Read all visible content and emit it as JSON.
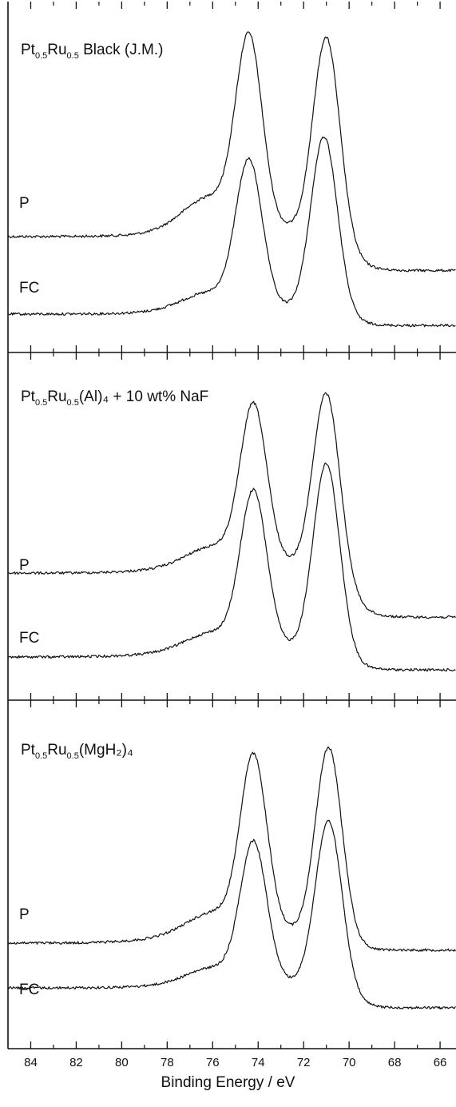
{
  "chart_data": {
    "type": "line",
    "xlabel": "Binding Energy / eV",
    "xlim": [
      85,
      65.3
    ],
    "x_reversed": true,
    "x_ticks": [
      84,
      82,
      80,
      78,
      76,
      74,
      72,
      70,
      68,
      66
    ],
    "peaks_eV": [
      74.3,
      71.0
    ],
    "panels": [
      {
        "title": {
          "pre": "Pt",
          "s1": "0.5",
          "mid": "Ru",
          "s2": "0.5",
          "post": " Black (J.M.)"
        },
        "series": [
          {
            "name": "P",
            "baseline_left": 296,
            "baseline_right": 346,
            "peak1_x": 74.4,
            "peak1_top": 57,
            "peak2_x": 71.0,
            "peak2_top": 47,
            "valley_y": 233,
            "shoulder": 0.55
          },
          {
            "name": "FC",
            "baseline_left": 393,
            "baseline_right": 413,
            "peak1_x": 74.4,
            "peak1_top": 207,
            "peak2_x": 71.1,
            "peak2_top": 171,
            "valley_y": 345,
            "shoulder": 0.25
          }
        ]
      },
      {
        "title": {
          "pre": "Pt",
          "s1": "0.5",
          "mid": "Ru",
          "s2": "0.5",
          "post": "(Al)₄ + 10 wt% NaF"
        },
        "series": [
          {
            "name": "P",
            "baseline_left": 717,
            "baseline_right": 781,
            "peak1_x": 74.2,
            "peak1_top": 514,
            "peak2_x": 71.0,
            "peak2_top": 492,
            "valley_y": 643,
            "shoulder": 0.3
          },
          {
            "name": "FC",
            "baseline_left": 822,
            "baseline_right": 847,
            "peak1_x": 74.2,
            "peak1_top": 622,
            "peak2_x": 71.0,
            "peak2_top": 580,
            "valley_y": 748,
            "shoulder": 0.25
          }
        ]
      },
      {
        "title": {
          "pre": "Pt",
          "s1": "0.5",
          "mid": "Ru",
          "s2": "0.5",
          "post": "(MgH₂)₄"
        },
        "series": [
          {
            "name": "P",
            "baseline_left": 832,
            "baseline_right": 1200,
            "peak1_x": 74.2,
            "peak1_top": 954,
            "peak2_x": 70.9,
            "peak2_top": 935,
            "valley_y": 1085,
            "shoulder": 0.3
          },
          {
            "name": "FC",
            "baseline_left": 1236,
            "baseline_right": 1266,
            "peak1_x": 74.2,
            "peak1_top": 1060,
            "peak2_x": 70.9,
            "peak2_top": 1027,
            "valley_y": 1193,
            "shoulder": 0.25
          }
        ]
      }
    ]
  }
}
